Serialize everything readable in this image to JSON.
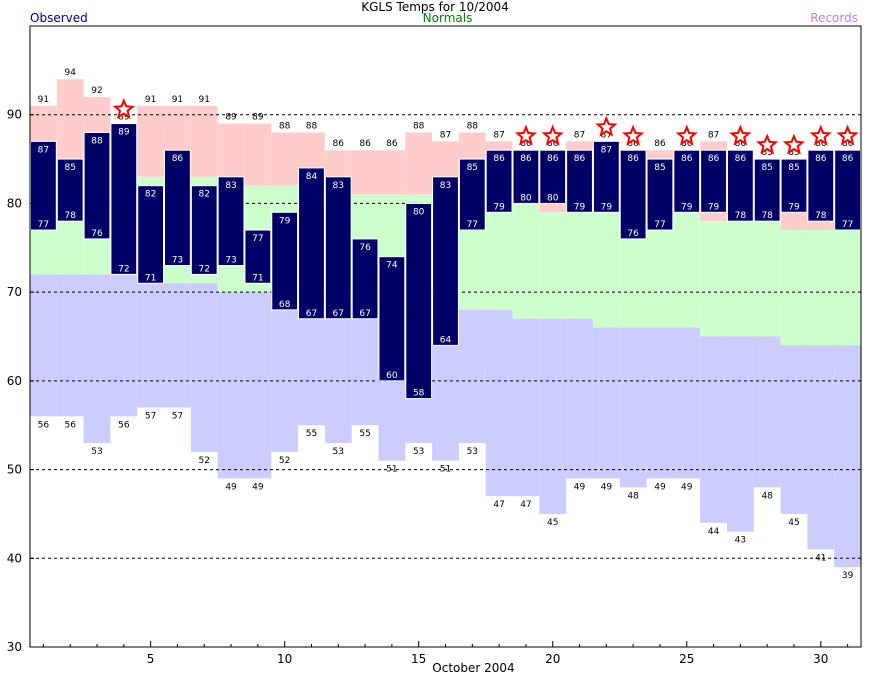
{
  "chart_data": {
    "type": "bar",
    "title": "KGLS Temps for 10/2004",
    "legend": {
      "observed": "Observed",
      "normals": "Normals",
      "records": "Records"
    },
    "xlabel": "October 2004",
    "x_ticks": [
      5,
      10,
      15,
      20,
      25,
      30
    ],
    "y_ticks": [
      30,
      40,
      50,
      60,
      70,
      80,
      90
    ],
    "ylim": [
      30,
      100
    ],
    "xlim": [
      0.5,
      31.5
    ],
    "gridlines_dashed": [
      40,
      50,
      60,
      70,
      80,
      90
    ],
    "days": [
      1,
      2,
      3,
      4,
      5,
      6,
      7,
      8,
      9,
      10,
      11,
      12,
      13,
      14,
      15,
      16,
      17,
      18,
      19,
      20,
      21,
      22,
      23,
      24,
      25,
      26,
      27,
      28,
      29,
      30,
      31
    ],
    "observed_high": [
      87,
      85,
      88,
      89,
      82,
      86,
      82,
      83,
      77,
      79,
      84,
      83,
      76,
      74,
      80,
      83,
      85,
      86,
      86,
      86,
      86,
      87,
      86,
      85,
      86,
      86,
      86,
      85,
      85,
      86,
      86
    ],
    "observed_low": [
      77,
      78,
      76,
      72,
      71,
      73,
      72,
      73,
      71,
      68,
      67,
      67,
      67,
      60,
      58,
      64,
      77,
      79,
      80,
      80,
      79,
      79,
      76,
      77,
      79,
      79,
      78,
      78,
      79,
      78,
      77
    ],
    "normal_high": [
      87,
      85,
      85,
      87,
      83,
      83,
      83,
      82,
      82,
      82,
      81,
      81,
      81,
      81,
      81,
      80,
      80,
      80,
      80,
      79,
      79,
      79,
      79,
      79,
      79,
      78,
      78,
      78,
      77,
      77,
      77
    ],
    "normal_low": [
      72,
      72,
      72,
      72,
      71,
      71,
      71,
      70,
      70,
      70,
      69,
      69,
      69,
      69,
      68,
      68,
      68,
      68,
      67,
      67,
      67,
      66,
      66,
      66,
      66,
      65,
      65,
      65,
      64,
      64,
      64
    ],
    "record_high": [
      91,
      94,
      92,
      89,
      91,
      91,
      91,
      89,
      89,
      88,
      88,
      86,
      86,
      86,
      88,
      87,
      88,
      87,
      86,
      86,
      87,
      87,
      86,
      86,
      86,
      87,
      86,
      85,
      85,
      86,
      86
    ],
    "record_low": [
      56,
      56,
      53,
      56,
      57,
      57,
      52,
      49,
      49,
      52,
      55,
      53,
      55,
      51,
      53,
      51,
      53,
      47,
      47,
      45,
      49,
      49,
      48,
      49,
      49,
      44,
      43,
      48,
      45,
      41,
      39
    ],
    "record_set_days": [
      4,
      19,
      20,
      22,
      23,
      25,
      27,
      28,
      29,
      30,
      31
    ],
    "colors": {
      "observed_bar": "#000066",
      "normals": "#ccffcc",
      "record_high_band": "#ffcccc",
      "record_low_band": "#ccccff",
      "record_star": "#ff0000",
      "observed_label": "#000080",
      "normals_label": "#008000",
      "records_label": "#c080e0"
    },
    "grid": true
  }
}
